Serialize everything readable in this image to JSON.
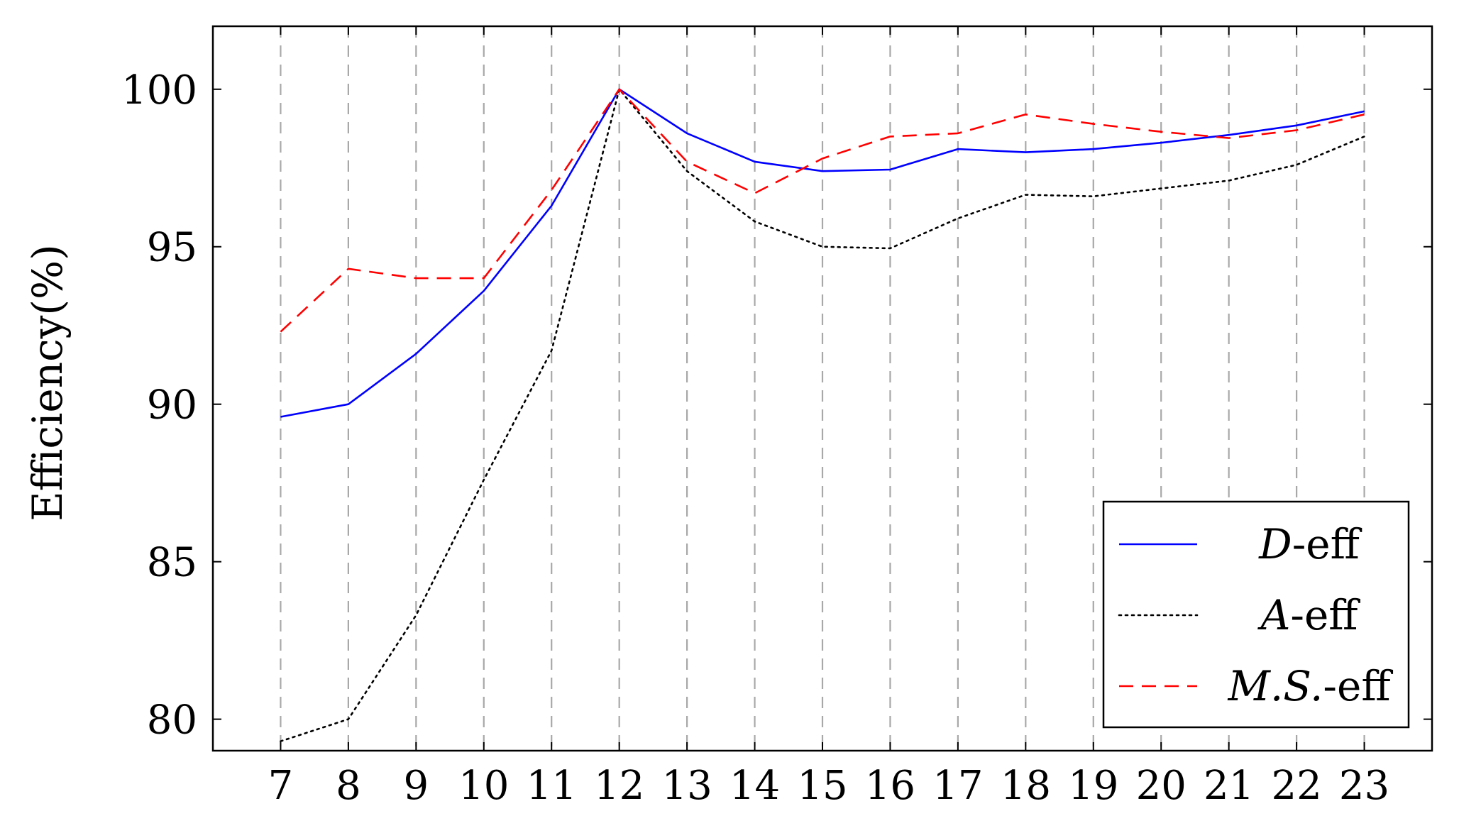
{
  "chart_data": {
    "type": "line",
    "ylabel": "Efficiency(%)",
    "xlabel": "",
    "x": [
      7,
      8,
      9,
      10,
      11,
      12,
      13,
      14,
      15,
      16,
      17,
      18,
      19,
      20,
      21,
      22,
      23
    ],
    "x_tick_labels": [
      "7",
      "8",
      "9",
      "10",
      "11",
      "12",
      "13",
      "14",
      "15",
      "16",
      "17",
      "18",
      "19",
      "20",
      "21",
      "22",
      "23"
    ],
    "xlim": [
      6.0,
      24.0
    ],
    "ylim": [
      79.0,
      102.0
    ],
    "y_ticks": [
      80,
      85,
      90,
      95,
      100
    ],
    "y_tick_labels": [
      "80",
      "85",
      "90",
      "95",
      "100"
    ],
    "grid": "vertical dashed at x ticks",
    "legend_position": "bottom-right",
    "series": [
      {
        "name": "D-eff",
        "legend_italic": "D",
        "legend_suffix": "-eff",
        "color": "#0000ff",
        "style": "solid",
        "values": [
          89.6,
          90.0,
          91.6,
          93.6,
          96.3,
          100.0,
          98.6,
          97.7,
          97.4,
          97.45,
          98.1,
          98.0,
          98.1,
          98.3,
          98.55,
          98.85,
          99.3
        ]
      },
      {
        "name": "A-eff",
        "legend_italic": "A",
        "legend_suffix": "-eff",
        "color": "#000000",
        "style": "dotted",
        "values": [
          79.3,
          80.0,
          83.3,
          87.6,
          91.7,
          100.0,
          97.4,
          95.8,
          95.0,
          94.95,
          95.9,
          96.65,
          96.6,
          96.85,
          97.1,
          97.6,
          98.5
        ]
      },
      {
        "name": "M.S.-eff",
        "legend_italic": "M.S.",
        "legend_suffix": "-eff",
        "color": "#ff0000",
        "style": "dashed",
        "values": [
          92.3,
          94.3,
          94.0,
          94.0,
          96.8,
          100.0,
          97.7,
          96.7,
          97.8,
          98.5,
          98.6,
          99.2,
          98.9,
          98.65,
          98.45,
          98.7,
          99.2
        ]
      }
    ]
  }
}
